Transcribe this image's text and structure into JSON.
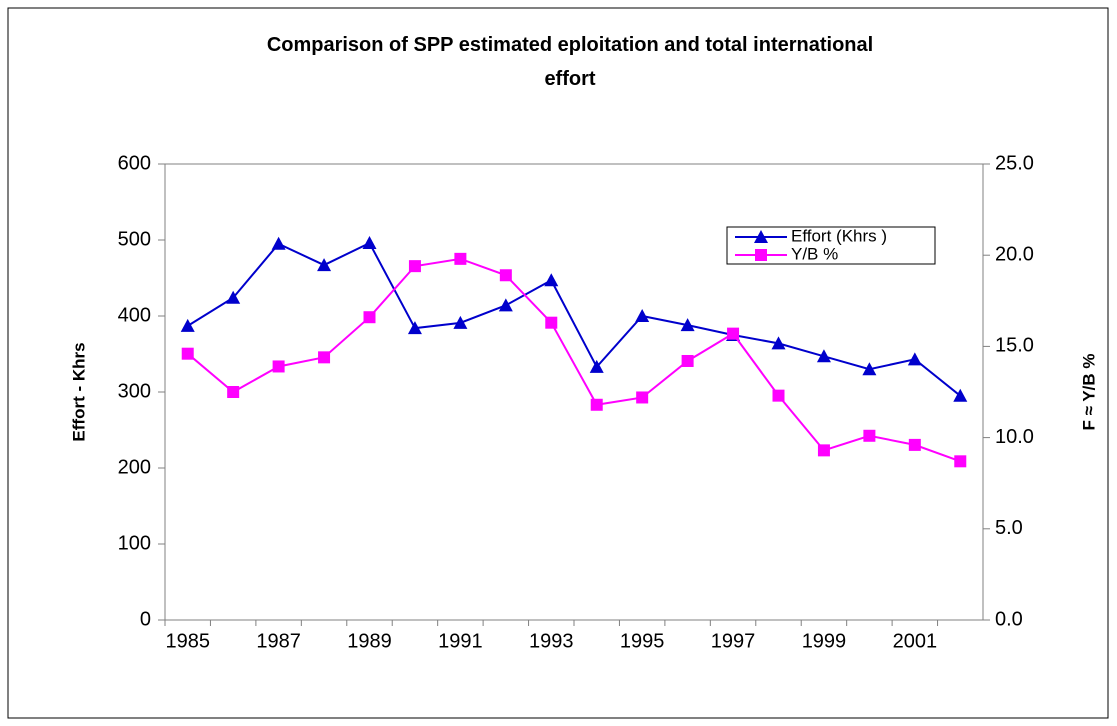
{
  "chart_data": {
    "type": "line",
    "title": "Comparison of SPP estimated eploitation and total international effort",
    "ylabel": "Effort - Khrs",
    "y2label": "F ≈ Y/B %",
    "categories": [
      "1985",
      null,
      "1987",
      null,
      "1989",
      null,
      "1991",
      null,
      "1993",
      null,
      "1995",
      null,
      "1997",
      null,
      "1999",
      null,
      "2001",
      null
    ],
    "series": [
      {
        "name": "Effort (Khrs )",
        "color": "#0000cc",
        "marker": "triangle",
        "values": [
          387,
          424,
          495,
          467,
          496,
          384,
          391,
          414,
          447,
          333,
          400,
          388,
          375,
          364,
          347,
          330,
          343,
          295
        ]
      },
      {
        "name": "Y/B %",
        "color": "#ff00ff",
        "marker": "square",
        "axis": "y2",
        "values": [
          14.6,
          12.5,
          13.9,
          14.4,
          16.6,
          19.4,
          19.8,
          18.9,
          16.3,
          11.8,
          12.2,
          14.2,
          15.7,
          12.3,
          9.3,
          10.1,
          9.6,
          8.7
        ]
      }
    ],
    "ylim": [
      0,
      600
    ],
    "yticks": [
      0,
      100,
      200,
      300,
      400,
      500,
      600
    ],
    "y2lim": [
      0,
      25
    ],
    "y2ticks": [
      {
        "value": 0,
        "label": "0.0"
      },
      {
        "value": 5,
        "label": "5.0"
      },
      {
        "value": 10,
        "label": "10.0"
      },
      {
        "value": 15,
        "label": "15.0"
      },
      {
        "value": 20,
        "label": "20.0"
      },
      {
        "value": 25,
        "label": "25.0"
      }
    ],
    "legend": "top-right"
  }
}
